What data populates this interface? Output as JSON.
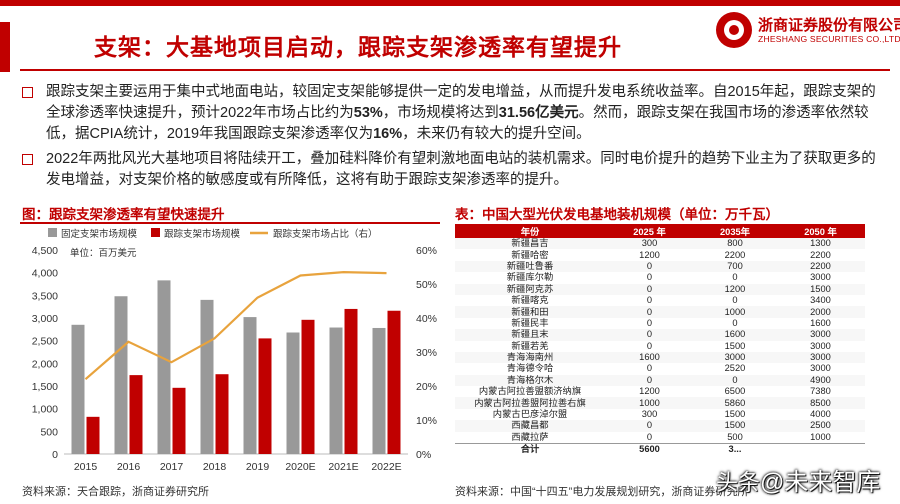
{
  "header": {
    "title": "支架：大基地项目启动，跟踪支架渗透率有望提升",
    "logo_cn": "浙商证券股份有限公司",
    "logo_en": "ZHESHANG SECURITIES CO.,LTD"
  },
  "bullets": [
    {
      "parts": [
        {
          "t": "跟踪支架主要运用于集中式地面电站，较固定支架能够提供一定的发电增益，从而提升发电系统收益率。自2015年起，跟踪支架的全球渗透率快速提升，预计2022年市场占比约为",
          "b": false
        },
        {
          "t": "53%",
          "b": true
        },
        {
          "t": "，市场规模将达到",
          "b": false
        },
        {
          "t": "31.56亿美元",
          "b": true
        },
        {
          "t": "。然而，跟踪支架在我国市场的渗透率依然较低，据CPIA统计，2019年我国跟踪支架渗透率仅为",
          "b": false
        },
        {
          "t": "16%",
          "b": true
        },
        {
          "t": "，未来仍有较大的提升空间。",
          "b": false
        }
      ]
    },
    {
      "parts": [
        {
          "t": "2022年两批风光大基地项目将陆续开工，叠加硅料降价有望刺激地面电站的装机需求。同时电价提升的趋势下业主为了获取更多的发电增益，对支架价格的敏感度或有所降低，这将有助于跟踪支架渗透率的提升。",
          "b": false
        }
      ]
    }
  ],
  "chart": {
    "caption": "图：跟踪支架渗透率有望快速提升",
    "source": "资料来源：天合跟踪，浙商证券研究所",
    "unit_label": "单位：百万美元"
  },
  "chart_data": {
    "type": "bar",
    "categories": [
      "2015",
      "2016",
      "2017",
      "2018",
      "2019",
      "2020E",
      "2021E",
      "2022E"
    ],
    "series": [
      {
        "name": "固定支架市场规模",
        "type": "bar",
        "axis": "left",
        "color": "#999999",
        "values": [
          2850,
          3480,
          3830,
          3400,
          3020,
          2680,
          2790,
          2780
        ]
      },
      {
        "name": "跟踪支架市场规模",
        "type": "bar",
        "axis": "left",
        "color": "#c00000",
        "values": [
          820,
          1740,
          1460,
          1760,
          2550,
          2960,
          3200,
          3160
        ]
      },
      {
        "name": "跟踪支架市场占比（右）",
        "type": "line",
        "axis": "right",
        "color": "#e8a33d",
        "values": [
          22,
          33,
          27,
          34,
          46,
          52.5,
          53.5,
          53.2
        ]
      }
    ],
    "ylim": [
      0,
      4500
    ],
    "yticks": [
      "0",
      "500",
      "1,000",
      "1,500",
      "2,000",
      "2,500",
      "3,000",
      "3,500",
      "4,000",
      "4,500"
    ],
    "y2lim": [
      0,
      60
    ],
    "y2ticks": [
      "0%",
      "10%",
      "20%",
      "30%",
      "40%",
      "50%",
      "60%"
    ],
    "legend": "top",
    "grid": false
  },
  "table": {
    "caption": "表：中国大型光伏发电基地装机规模（单位：万千瓦）",
    "source": "资料来源：中国“十四五”电力发展规划研究，浙商证券研究所",
    "headers": [
      "年份",
      "2025 年",
      "2035年",
      "2050 年"
    ],
    "rows": [
      [
        "新疆昌吉",
        "300",
        "800",
        "1300"
      ],
      [
        "新疆哈密",
        "1200",
        "2200",
        "2200"
      ],
      [
        "新疆吐鲁番",
        "0",
        "700",
        "2200"
      ],
      [
        "新疆库尔勒",
        "0",
        "0",
        "3000"
      ],
      [
        "新疆阿克苏",
        "0",
        "1200",
        "1500"
      ],
      [
        "新疆喀克",
        "0",
        "0",
        "3400"
      ],
      [
        "新疆和田",
        "0",
        "1000",
        "2000"
      ],
      [
        "新疆民丰",
        "0",
        "0",
        "1600"
      ],
      [
        "新疆且末",
        "0",
        "1600",
        "3000"
      ],
      [
        "新疆若羌",
        "0",
        "1500",
        "3000"
      ],
      [
        "青海海南州",
        "1600",
        "3000",
        "3000"
      ],
      [
        "青海德令哈",
        "0",
        "2520",
        "3000"
      ],
      [
        "青海格尔木",
        "0",
        "0",
        "4900"
      ],
      [
        "内蒙古阿拉善盟额济纳旗",
        "1200",
        "6500",
        "7380"
      ],
      [
        "内蒙古阿拉善盟阿拉善右旗",
        "1000",
        "5860",
        "8500"
      ],
      [
        "内蒙古巴彦淖尔盟",
        "300",
        "1500",
        "4000"
      ],
      [
        "西藏昌都",
        "0",
        "1500",
        "2500"
      ],
      [
        "西藏拉萨",
        "0",
        "500",
        "1000"
      ]
    ],
    "total": [
      "合计",
      "5600",
      "3...",
      ""
    ]
  },
  "watermark": {
    "glyph": "头条",
    "text": "@未来智库"
  }
}
